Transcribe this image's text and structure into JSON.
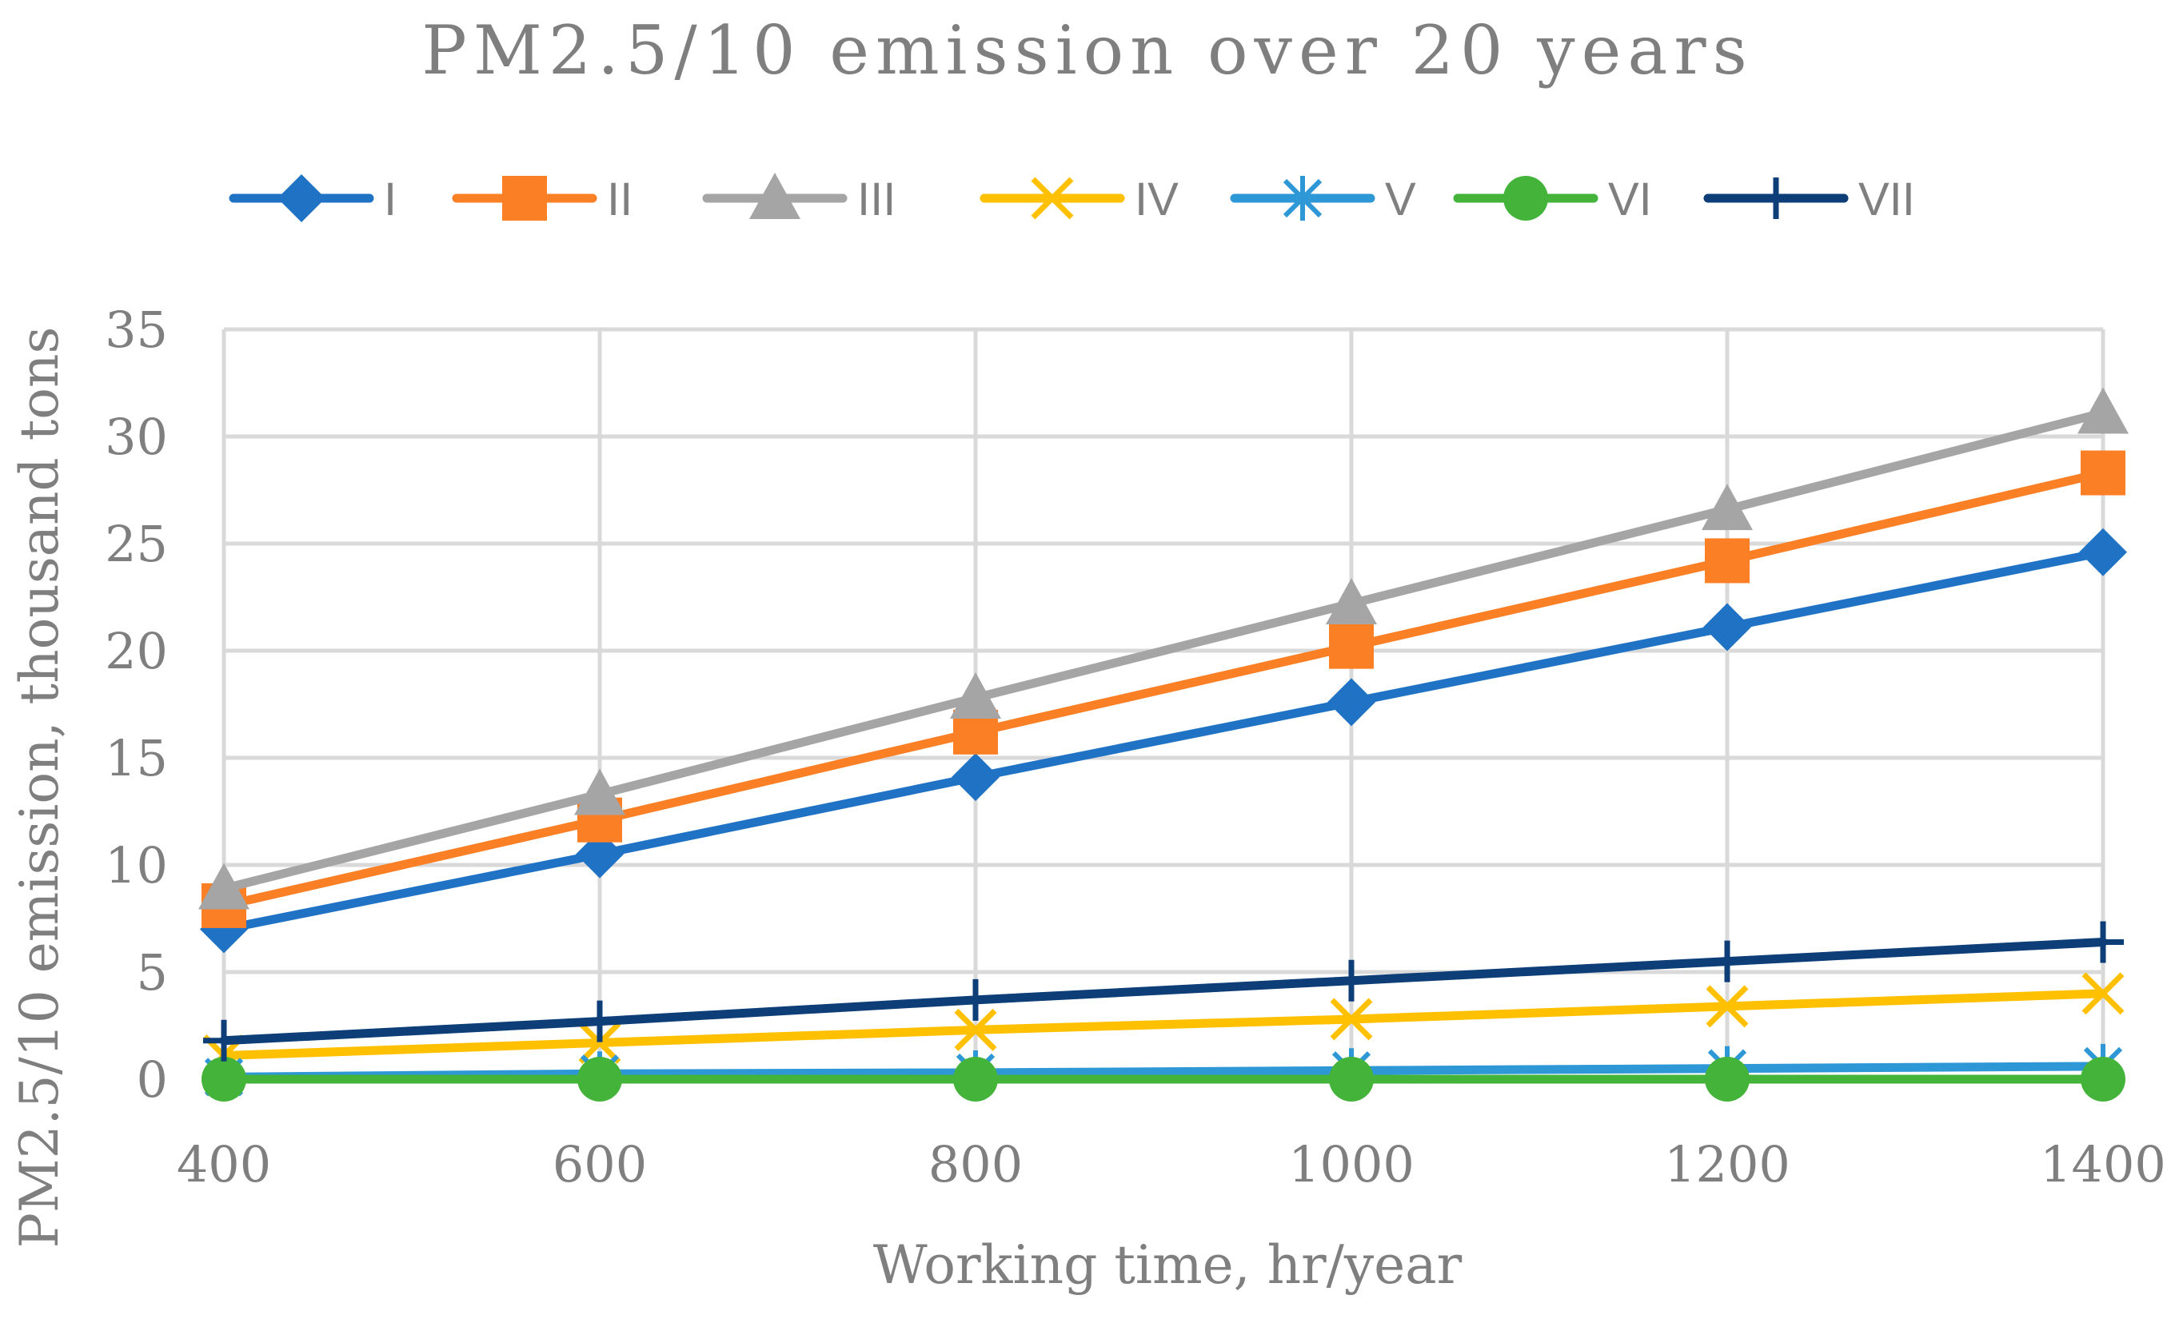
{
  "chart_data": {
    "type": "line",
    "title": "PM2.5/10 emission over 20 years",
    "xlabel": "Working time, hr/year",
    "ylabel": "PM2.5/10 emission, thousand tons",
    "x": [
      400,
      600,
      800,
      1000,
      1200,
      1400
    ],
    "x_tick_labels": [
      "400",
      "600",
      "800",
      "1000",
      "1200",
      "1400"
    ],
    "ylim": [
      0,
      35
    ],
    "y_ticks": [
      0,
      5,
      10,
      15,
      20,
      25,
      30,
      35
    ],
    "y_tick_labels": [
      "0",
      "5",
      "10",
      "15",
      "20",
      "25",
      "30",
      "35"
    ],
    "grid": true,
    "legend_position": "top",
    "series": [
      {
        "name": "I",
        "color": "#1f72c4",
        "marker": "diamond",
        "values": [
          7.0,
          10.5,
          14.1,
          17.6,
          21.1,
          24.6
        ]
      },
      {
        "name": "II",
        "color": "#fb7f25",
        "marker": "square",
        "values": [
          8.1,
          12.1,
          16.2,
          20.2,
          24.2,
          28.3
        ]
      },
      {
        "name": "III",
        "color": "#a5a5a5",
        "marker": "triangle",
        "values": [
          8.9,
          13.3,
          17.8,
          22.2,
          26.6,
          31.1
        ]
      },
      {
        "name": "IV",
        "color": "#ffc000",
        "marker": "x",
        "values": [
          1.1,
          1.7,
          2.3,
          2.8,
          3.4,
          4.0
        ]
      },
      {
        "name": "V",
        "color": "#2e98d6",
        "marker": "star",
        "values": [
          0.1,
          0.25,
          0.3,
          0.4,
          0.5,
          0.6
        ]
      },
      {
        "name": "VI",
        "color": "#43b33a",
        "marker": "circle",
        "values": [
          0.0,
          0.0,
          0.0,
          0.0,
          0.0,
          0.0
        ]
      },
      {
        "name": "VII",
        "color": "#0d3e78",
        "marker": "plus",
        "values": [
          1.8,
          2.7,
          3.7,
          4.6,
          5.5,
          6.4
        ]
      }
    ]
  }
}
